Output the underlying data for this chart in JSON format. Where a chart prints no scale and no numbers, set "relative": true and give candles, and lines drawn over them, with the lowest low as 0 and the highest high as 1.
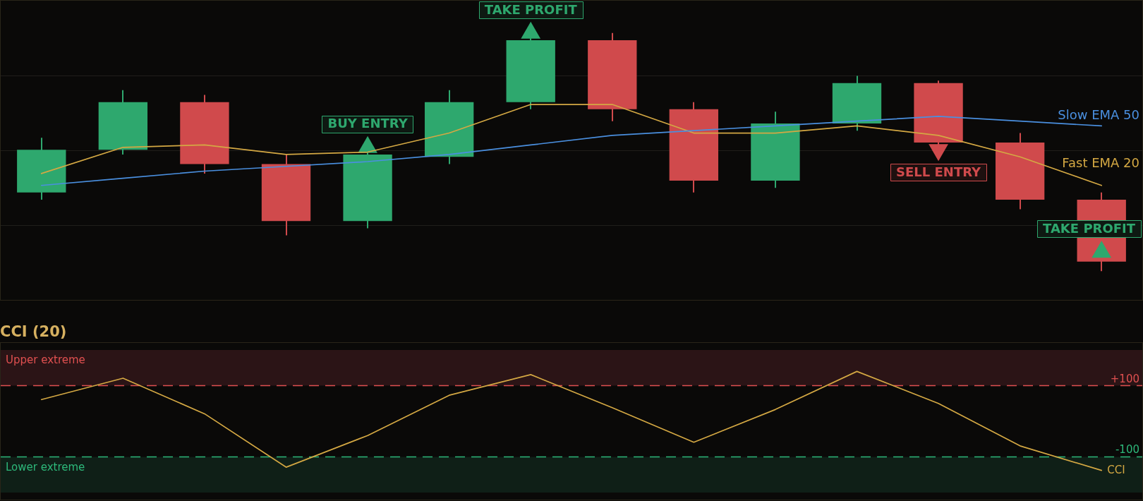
{
  "chart_data": [
    {
      "type": "candlestick",
      "relative": true,
      "grid": "y",
      "tick_labels": false,
      "categories": [
        null,
        null,
        null,
        null,
        null,
        null,
        null,
        null,
        null,
        null,
        null,
        null,
        null,
        null
      ],
      "ohlc": [
        [
          0.33,
          0.56,
          0.3,
          0.51
        ],
        [
          0.51,
          0.76,
          0.49,
          0.71
        ],
        [
          0.71,
          0.74,
          0.41,
          0.45
        ],
        [
          0.45,
          0.49,
          0.15,
          0.21
        ],
        [
          0.21,
          0.5,
          0.18,
          0.49
        ],
        [
          0.48,
          0.76,
          0.45,
          0.71
        ],
        [
          0.71,
          0.98,
          0.68,
          0.97
        ],
        [
          0.97,
          1,
          0.63,
          0.68
        ],
        [
          0.68,
          0.71,
          0.33,
          0.38
        ],
        [
          0.38,
          0.67,
          0.35,
          0.62
        ],
        [
          0.62,
          0.82,
          0.59,
          0.79
        ],
        [
          0.79,
          0.8,
          0.53,
          0.54
        ],
        [
          0.54,
          0.58,
          0.26,
          0.3
        ],
        [
          0.3,
          0.33,
          0,
          0.04
        ]
      ],
      "colors": [
        "#2ea86e",
        "#2ea86e",
        "#d04a4c",
        "#d04a4c",
        "#2ea86e",
        "#2ea86e",
        "#2ea86e",
        "#d04a4c",
        "#d04a4c",
        "#2ea86e",
        "#2ea86e",
        "#d04a4c",
        "#d04a4c",
        "#d04a4c"
      ],
      "series": [
        {
          "type": "line",
          "name": "Slow EMA 50",
          "color": "#4a8fdf",
          "values": [
            0.36,
            0.39,
            0.42,
            0.44,
            0.46,
            0.49,
            0.53,
            0.57,
            0.59,
            0.61,
            0.63,
            0.65,
            0.63,
            0.61
          ]
        },
        {
          "type": "line",
          "name": "Fast EMA 20",
          "color": "#d4a843",
          "values": [
            0.41,
            0.52,
            0.53,
            0.49,
            0.5,
            0.58,
            0.7,
            0.7,
            0.58,
            0.58,
            0.61,
            0.57,
            0.48,
            0.36
          ]
        },
        {
          "type": "scatter",
          "marker": "triangle",
          "color": "#2ea86e",
          "values": [
            null,
            null,
            null,
            null,
            0.52,
            null,
            1,
            null,
            null,
            null,
            null,
            null,
            null,
            0.08
          ]
        },
        {
          "type": "scatter",
          "marker": "triangle",
          "color": "#d04a4c",
          "values": [
            null,
            null,
            null,
            null,
            null,
            null,
            null,
            null,
            null,
            null,
            null,
            0.51,
            null,
            null
          ]
        }
      ],
      "annotations": [
        "BUY ENTRY",
        "TAKE PROFIT",
        "SELL ENTRY",
        "TAKE PROFIT"
      ]
    },
    {
      "type": "line",
      "title": "CCI (20)",
      "tick_labels": false,
      "categories": [
        null,
        null,
        null,
        null,
        null,
        null,
        null,
        null,
        null,
        null,
        null,
        null,
        null,
        null
      ],
      "series": [
        {
          "name": "CCI",
          "color": "#d4a843",
          "values": [
            61,
            121,
            21,
            -129,
            -40,
            73,
            131,
            38,
            -59,
            33,
            140,
            50,
            -69,
            -138
          ]
        }
      ],
      "ylim": [
        -220,
        220
      ],
      "bands": [
        {
          "axis": "y",
          "from": 100,
          "to": 200,
          "label": "Upper extreme",
          "color": "#2b1416"
        },
        {
          "axis": "y",
          "from": -200,
          "to": -100,
          "label": "Lower extreme",
          "color": "#0f1f17"
        }
      ],
      "ref_lines": [
        {
          "axis": "y",
          "value": 100,
          "label": "+100",
          "color": "#e05050",
          "line_style": "dashed"
        },
        {
          "axis": "y",
          "value": -100,
          "label": "-100",
          "color": "#2db87a",
          "line_style": "dashed"
        }
      ]
    }
  ]
}
